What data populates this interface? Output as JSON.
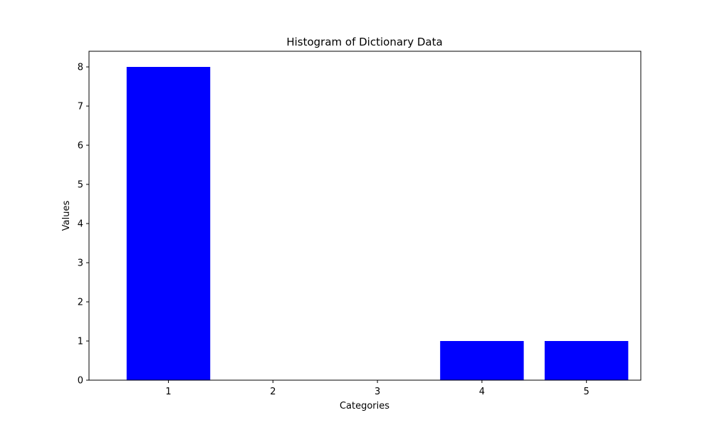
{
  "chart_data": {
    "type": "bar",
    "title": "Histogram of Dictionary Data",
    "xlabel": "Categories",
    "ylabel": "Values",
    "categories": [
      1,
      2,
      3,
      4,
      5
    ],
    "values": [
      8,
      0,
      0,
      1,
      1
    ],
    "xlim": [
      0.24,
      5.52
    ],
    "ylim": [
      0,
      8.4
    ],
    "yticks": [
      0,
      1,
      2,
      3,
      4,
      5,
      6,
      7,
      8
    ],
    "grid": false,
    "bar_color": "#0000ff"
  }
}
